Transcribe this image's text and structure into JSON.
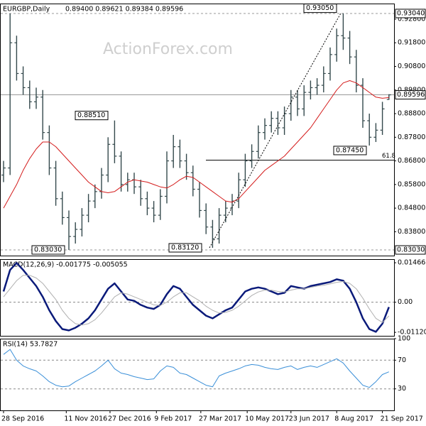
{
  "chart_data": [
    {
      "type": "ohlc",
      "title": "EURGBP,Daily",
      "header_values": "0.89400 0.89621 0.89384 0.89596",
      "watermark": "ActionForex.com",
      "ylim": [
        0.8279,
        0.9346
      ],
      "yticks": [
        {
          "value": 0.928,
          "label": "0.92800"
        },
        {
          "value": 0.918,
          "label": "0.91800"
        },
        {
          "value": 0.908,
          "label": "0.90800"
        },
        {
          "value": 0.898,
          "label": "0.89800"
        },
        {
          "value": 0.888,
          "label": "0.88800"
        },
        {
          "value": 0.878,
          "label": "0.87800"
        },
        {
          "value": 0.868,
          "label": "0.86800"
        },
        {
          "value": 0.858,
          "label": "0.85800"
        },
        {
          "value": 0.848,
          "label": "0.84800"
        },
        {
          "value": 0.838,
          "label": "0.83800"
        }
      ],
      "levels": [
        {
          "value": 0.9304,
          "label": "0.93040",
          "style": "dash"
        },
        {
          "value": 0.89596,
          "label": "0.89596",
          "style": "solid"
        },
        {
          "value": 0.8303,
          "label": "0.83030",
          "style": "dash"
        }
      ],
      "annotations": [
        {
          "value": 0.9305,
          "label": "0.93050"
        },
        {
          "value": 0.8851,
          "label": "0.88510"
        },
        {
          "value": 0.8745,
          "label": "0.87450"
        },
        {
          "value": 0.8303,
          "label": "0.83030"
        },
        {
          "value": 0.8312,
          "label": "0.83120"
        }
      ],
      "fib": {
        "value": 0.8683,
        "label": "61.8"
      },
      "color": "#34494c",
      "open": [
        0.862,
        0.865,
        0.918,
        0.905,
        0.899,
        0.893,
        0.895,
        0.88,
        0.865,
        0.852,
        0.844,
        0.836,
        0.839,
        0.845,
        0.851,
        0.855,
        0.862,
        0.875,
        0.87,
        0.858,
        0.86,
        0.857,
        0.852,
        0.848,
        0.845,
        0.853,
        0.868,
        0.874,
        0.868,
        0.863,
        0.856,
        0.847,
        0.84,
        0.835,
        0.845,
        0.848,
        0.851,
        0.86,
        0.868,
        0.872,
        0.88,
        0.883,
        0.886,
        0.882,
        0.888,
        0.895,
        0.89,
        0.897,
        0.899,
        0.9,
        0.905,
        0.913,
        0.921,
        0.92,
        0.912,
        0.9,
        0.885,
        0.878,
        0.881,
        0.894
      ],
      "high": [
        0.868,
        0.9304,
        0.921,
        0.908,
        0.902,
        0.899,
        0.898,
        0.883,
        0.868,
        0.855,
        0.847,
        0.842,
        0.848,
        0.854,
        0.858,
        0.865,
        0.878,
        0.8851,
        0.872,
        0.863,
        0.863,
        0.86,
        0.855,
        0.851,
        0.856,
        0.872,
        0.879,
        0.877,
        0.871,
        0.866,
        0.859,
        0.85,
        0.843,
        0.848,
        0.851,
        0.854,
        0.863,
        0.871,
        0.875,
        0.883,
        0.886,
        0.889,
        0.889,
        0.891,
        0.898,
        0.898,
        0.9,
        0.902,
        0.903,
        0.908,
        0.916,
        0.924,
        0.9305,
        0.923,
        0.915,
        0.903,
        0.888,
        0.884,
        0.893,
        0.89621
      ],
      "low": [
        0.859,
        0.862,
        0.902,
        0.896,
        0.89,
        0.89,
        0.877,
        0.862,
        0.849,
        0.841,
        0.8303,
        0.833,
        0.836,
        0.842,
        0.848,
        0.852,
        0.859,
        0.867,
        0.855,
        0.855,
        0.854,
        0.849,
        0.845,
        0.842,
        0.843,
        0.85,
        0.865,
        0.865,
        0.86,
        0.853,
        0.844,
        0.837,
        0.8312,
        0.833,
        0.842,
        0.845,
        0.848,
        0.857,
        0.865,
        0.869,
        0.877,
        0.88,
        0.879,
        0.879,
        0.885,
        0.887,
        0.887,
        0.894,
        0.896,
        0.897,
        0.902,
        0.91,
        0.915,
        0.909,
        0.897,
        0.882,
        0.8745,
        0.876,
        0.879,
        0.89384
      ],
      "close": [
        0.865,
        0.918,
        0.905,
        0.899,
        0.893,
        0.895,
        0.88,
        0.865,
        0.852,
        0.844,
        0.836,
        0.839,
        0.845,
        0.851,
        0.855,
        0.862,
        0.875,
        0.87,
        0.858,
        0.86,
        0.857,
        0.852,
        0.848,
        0.845,
        0.853,
        0.868,
        0.874,
        0.868,
        0.863,
        0.856,
        0.847,
        0.84,
        0.835,
        0.845,
        0.848,
        0.851,
        0.86,
        0.868,
        0.872,
        0.88,
        0.883,
        0.886,
        0.882,
        0.888,
        0.895,
        0.89,
        0.897,
        0.899,
        0.9,
        0.905,
        0.913,
        0.921,
        0.92,
        0.912,
        0.9,
        0.885,
        0.878,
        0.881,
        0.89,
        0.89596
      ],
      "series": [
        {
          "color": "#d41c1c",
          "values": [
            0.848,
            0.853,
            0.858,
            0.864,
            0.869,
            0.873,
            0.876,
            0.876,
            0.874,
            0.871,
            0.868,
            0.865,
            0.862,
            0.859,
            0.857,
            0.855,
            0.8545,
            0.855,
            0.857,
            0.859,
            0.86,
            0.8595,
            0.859,
            0.858,
            0.857,
            0.8565,
            0.858,
            0.86,
            0.8615,
            0.861,
            0.859,
            0.857,
            0.855,
            0.853,
            0.851,
            0.8505,
            0.852,
            0.855,
            0.858,
            0.861,
            0.864,
            0.866,
            0.868,
            0.87,
            0.873,
            0.876,
            0.879,
            0.882,
            0.886,
            0.89,
            0.894,
            0.898,
            0.901,
            0.902,
            0.901,
            0.899,
            0.897,
            0.895,
            0.8945,
            0.8948
          ]
        }
      ]
    },
    {
      "type": "line",
      "title": "MACD(12,26,9) -0.001775 -0.005055",
      "ylim": [
        -0.0125,
        0.016
      ],
      "yticks": [
        0.014661,
        {
          "value": 0,
          "label": "0.00"
        },
        -0.011202
      ],
      "reference_lines": [
        0
      ],
      "series": [
        {
          "color": "#0a1a7a",
          "width": 2.5,
          "values": [
            0.004,
            0.012,
            0.0146,
            0.012,
            0.009,
            0.006,
            0.002,
            -0.003,
            -0.007,
            -0.01,
            -0.0105,
            -0.0095,
            -0.008,
            -0.006,
            -0.003,
            0.001,
            0.005,
            0.007,
            0.004,
            0.001,
            0.0005,
            -0.001,
            -0.002,
            -0.0025,
            -0.001,
            0.003,
            0.006,
            0.005,
            0.002,
            -0.001,
            -0.003,
            -0.005,
            -0.006,
            -0.0045,
            -0.003,
            -0.002,
            0.001,
            0.004,
            0.005,
            0.0055,
            0.005,
            0.004,
            0.003,
            0.0035,
            0.006,
            0.0055,
            0.005,
            0.006,
            0.0065,
            0.007,
            0.0075,
            0.0085,
            0.008,
            0.005,
            0.0,
            -0.006,
            -0.01,
            -0.011,
            -0.008,
            -0.0018
          ]
        },
        {
          "color": "#b0b0b0",
          "width": 1,
          "values": [
            0.002,
            0.005,
            0.008,
            0.01,
            0.01,
            0.009,
            0.007,
            0.004,
            0.001,
            -0.003,
            -0.006,
            -0.008,
            -0.0085,
            -0.008,
            -0.0065,
            -0.004,
            -0.001,
            0.002,
            0.0035,
            0.003,
            0.002,
            0.001,
            0.0,
            -0.001,
            -0.0012,
            0.0,
            0.002,
            0.0035,
            0.0035,
            0.002,
            0.0005,
            -0.0015,
            -0.003,
            -0.004,
            -0.0038,
            -0.003,
            -0.0015,
            0.0005,
            0.0025,
            0.0038,
            0.0045,
            0.0045,
            0.004,
            0.0038,
            0.0045,
            0.005,
            0.005,
            0.0055,
            0.006,
            0.0063,
            0.0068,
            0.0074,
            0.0077,
            0.007,
            0.005,
            0.0015,
            -0.0025,
            -0.006,
            -0.0075,
            -0.0051
          ]
        }
      ]
    },
    {
      "type": "line",
      "title": "RSI(14) 53.7827",
      "ylim": [
        0,
        100
      ],
      "yticks": [
        100,
        70,
        30
      ],
      "reference_lines": [
        70,
        30
      ],
      "series": [
        {
          "color": "#3a8fd8",
          "width": 1,
          "values": [
            78,
            85,
            70,
            62,
            58,
            55,
            48,
            40,
            35,
            33,
            34,
            40,
            45,
            50,
            55,
            62,
            70,
            58,
            52,
            50,
            47,
            45,
            43,
            44,
            55,
            62,
            60,
            52,
            50,
            45,
            40,
            35,
            33,
            48,
            52,
            55,
            58,
            62,
            64,
            63,
            60,
            58,
            57,
            60,
            62,
            57,
            60,
            62,
            60,
            64,
            68,
            72,
            66,
            55,
            45,
            35,
            32,
            40,
            50,
            53.78
          ]
        }
      ],
      "xticks": [
        {
          "value": 0,
          "label": "28 Sep 2016"
        },
        {
          "value": 9.6,
          "label": "11 Nov 2016"
        },
        {
          "value": 16.3,
          "label": "27 Dec 2016"
        },
        {
          "value": 23.4,
          "label": "9 Feb 2017"
        },
        {
          "value": 30.2,
          "label": "27 Mar 2017"
        },
        {
          "value": 37.3,
          "label": "10 May 2017"
        },
        {
          "value": 44,
          "label": "23 Jun 2017"
        },
        {
          "value": 51,
          "label": "8 Aug 2017"
        },
        {
          "value": 58,
          "label": "21 Sep 2017"
        }
      ]
    }
  ]
}
